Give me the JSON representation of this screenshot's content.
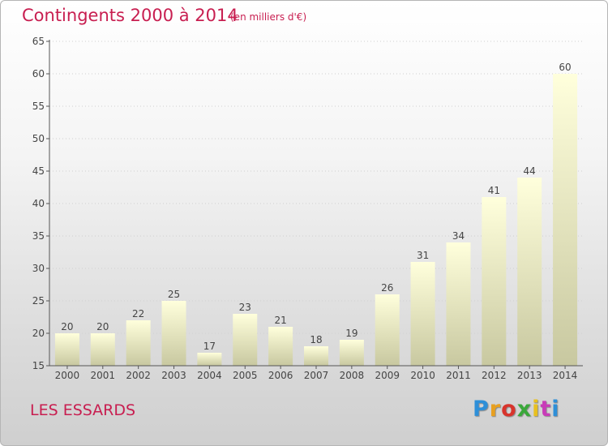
{
  "header": {
    "title": "Contingents 2000 à 2014",
    "subtitle": "(en milliers d'€)"
  },
  "footer": {
    "commune": "LES ESSARDS",
    "logo": "Proxiti",
    "logo_colors": [
      "#2e8fd8",
      "#e8a020",
      "#d8342c",
      "#3aa83a",
      "#e8c020",
      "#c83cb8",
      "#2e8fd8"
    ]
  },
  "chart_data": {
    "type": "bar",
    "title": "Contingents 2000 à 2014",
    "subtitle": "(en milliers d'€)",
    "xlabel": "",
    "ylabel": "",
    "categories": [
      "2000",
      "2001",
      "2002",
      "2003",
      "2004",
      "2005",
      "2006",
      "2007",
      "2008",
      "2009",
      "2010",
      "2011",
      "2012",
      "2013",
      "2014"
    ],
    "values": [
      20,
      20,
      22,
      25,
      17,
      23,
      21,
      18,
      19,
      26,
      31,
      34,
      41,
      44,
      60
    ],
    "ylim": [
      15,
      65
    ],
    "yticks": [
      15,
      20,
      25,
      30,
      35,
      40,
      45,
      50,
      55,
      60,
      65
    ],
    "grid": true,
    "legend": "none",
    "bar_color_top": "#ffffdc",
    "bar_color_bottom": "#c8c8a0"
  }
}
